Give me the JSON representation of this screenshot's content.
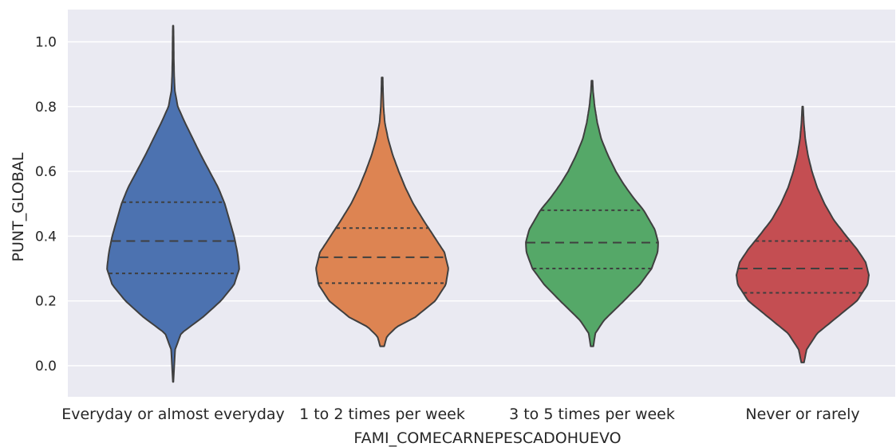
{
  "chart_data": {
    "type": "violin",
    "xlabel": "FAMI_COMECARNEPESCADOHUEVO",
    "ylabel": "PUNT_GLOBAL",
    "ylim": [
      -0.1,
      1.1
    ],
    "yticks": [
      "0.0",
      "0.2",
      "0.4",
      "0.6",
      "0.8",
      "1.0"
    ],
    "ytick_values": [
      0.0,
      0.2,
      0.4,
      0.6,
      0.8,
      1.0
    ],
    "grid": true,
    "background": "#eaeaf2",
    "categories": [
      "Everyday or almost everyday",
      "1 to 2 times per week",
      "3 to 5 times per week",
      "Never or rarely"
    ],
    "colors": [
      "#4c72b0",
      "#dd8452",
      "#55a868",
      "#c44e52"
    ],
    "violins": [
      {
        "category": "Everyday or almost everyday",
        "min": -0.05,
        "max": 1.05,
        "q1": 0.285,
        "median": 0.385,
        "q3": 0.505,
        "profile": [
          [
            -0.05,
            0.004
          ],
          [
            0.05,
            0.03
          ],
          [
            0.1,
            0.12
          ],
          [
            0.15,
            0.45
          ],
          [
            0.2,
            0.72
          ],
          [
            0.25,
            0.92
          ],
          [
            0.3,
            1.0
          ],
          [
            0.35,
            0.97
          ],
          [
            0.4,
            0.92
          ],
          [
            0.45,
            0.85
          ],
          [
            0.5,
            0.78
          ],
          [
            0.55,
            0.68
          ],
          [
            0.6,
            0.55
          ],
          [
            0.65,
            0.42
          ],
          [
            0.7,
            0.3
          ],
          [
            0.75,
            0.18
          ],
          [
            0.8,
            0.07
          ],
          [
            0.85,
            0.025
          ],
          [
            0.9,
            0.015
          ],
          [
            0.95,
            0.01
          ],
          [
            1.0,
            0.008
          ],
          [
            1.05,
            0.004
          ]
        ]
      },
      {
        "category": "1 to 2 times per week",
        "min": 0.06,
        "max": 0.89,
        "q1": 0.255,
        "median": 0.335,
        "q3": 0.425,
        "profile": [
          [
            0.06,
            0.03
          ],
          [
            0.09,
            0.07
          ],
          [
            0.12,
            0.22
          ],
          [
            0.15,
            0.5
          ],
          [
            0.2,
            0.8
          ],
          [
            0.25,
            0.96
          ],
          [
            0.3,
            1.0
          ],
          [
            0.35,
            0.94
          ],
          [
            0.4,
            0.78
          ],
          [
            0.45,
            0.62
          ],
          [
            0.5,
            0.47
          ],
          [
            0.55,
            0.35
          ],
          [
            0.6,
            0.25
          ],
          [
            0.65,
            0.16
          ],
          [
            0.7,
            0.09
          ],
          [
            0.75,
            0.04
          ],
          [
            0.8,
            0.02
          ],
          [
            0.85,
            0.012
          ],
          [
            0.89,
            0.008
          ]
        ]
      },
      {
        "category": "3 to 5 times per week",
        "min": 0.06,
        "max": 0.88,
        "q1": 0.3,
        "median": 0.38,
        "q3": 0.48,
        "profile": [
          [
            0.06,
            0.02
          ],
          [
            0.1,
            0.05
          ],
          [
            0.14,
            0.18
          ],
          [
            0.2,
            0.48
          ],
          [
            0.25,
            0.72
          ],
          [
            0.3,
            0.9
          ],
          [
            0.35,
            0.99
          ],
          [
            0.38,
            1.0
          ],
          [
            0.42,
            0.95
          ],
          [
            0.48,
            0.78
          ],
          [
            0.52,
            0.62
          ],
          [
            0.56,
            0.48
          ],
          [
            0.6,
            0.36
          ],
          [
            0.65,
            0.24
          ],
          [
            0.7,
            0.14
          ],
          [
            0.75,
            0.08
          ],
          [
            0.8,
            0.04
          ],
          [
            0.85,
            0.015
          ],
          [
            0.88,
            0.008
          ]
        ]
      },
      {
        "category": "Never or rarely",
        "min": 0.01,
        "max": 0.8,
        "q1": 0.225,
        "median": 0.3,
        "q3": 0.385,
        "profile": [
          [
            0.01,
            0.02
          ],
          [
            0.05,
            0.06
          ],
          [
            0.1,
            0.22
          ],
          [
            0.15,
            0.52
          ],
          [
            0.2,
            0.82
          ],
          [
            0.25,
            0.98
          ],
          [
            0.28,
            1.0
          ],
          [
            0.32,
            0.95
          ],
          [
            0.36,
            0.82
          ],
          [
            0.4,
            0.66
          ],
          [
            0.45,
            0.47
          ],
          [
            0.5,
            0.33
          ],
          [
            0.55,
            0.22
          ],
          [
            0.6,
            0.14
          ],
          [
            0.65,
            0.08
          ],
          [
            0.7,
            0.04
          ],
          [
            0.75,
            0.018
          ],
          [
            0.8,
            0.006
          ]
        ]
      }
    ]
  }
}
